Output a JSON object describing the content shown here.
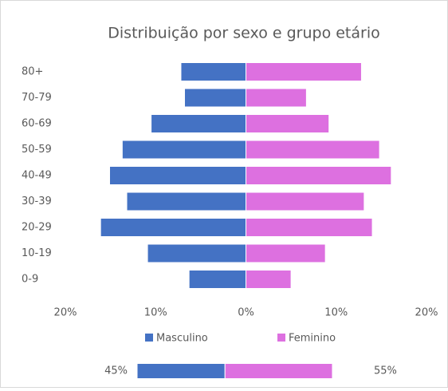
{
  "chart_data": [
    {
      "type": "pyramid",
      "title": "Distribuição por sexo e grupo etário",
      "categories": [
        "80+",
        "70-79",
        "60-69",
        "50-59",
        "40-49",
        "30-39",
        "20-29",
        "10-19",
        "0-9"
      ],
      "series": [
        {
          "name": "Masculino",
          "color": "#4472c4",
          "values": [
            -7.2,
            -6.8,
            -10.5,
            -13.7,
            -15.1,
            -13.2,
            -16.1,
            -10.9,
            -6.3
          ]
        },
        {
          "name": "Feminino",
          "color": "#dd70e0",
          "values": [
            12.8,
            6.7,
            9.2,
            14.8,
            16.1,
            13.1,
            14.0,
            8.8,
            5.0
          ]
        }
      ],
      "xlim": [
        -20,
        20
      ],
      "xticks": [
        {
          "value": -20,
          "label": "20%"
        },
        {
          "value": -10,
          "label": "10%"
        },
        {
          "value": 0,
          "label": "0%"
        },
        {
          "value": 10,
          "label": "10%"
        },
        {
          "value": 20,
          "label": "20%"
        }
      ]
    },
    {
      "type": "stacked-share",
      "values": [
        45,
        55
      ],
      "value_labels": [
        "45%",
        "55%"
      ],
      "colors": [
        "#4472c4",
        "#dd70e0"
      ]
    }
  ]
}
